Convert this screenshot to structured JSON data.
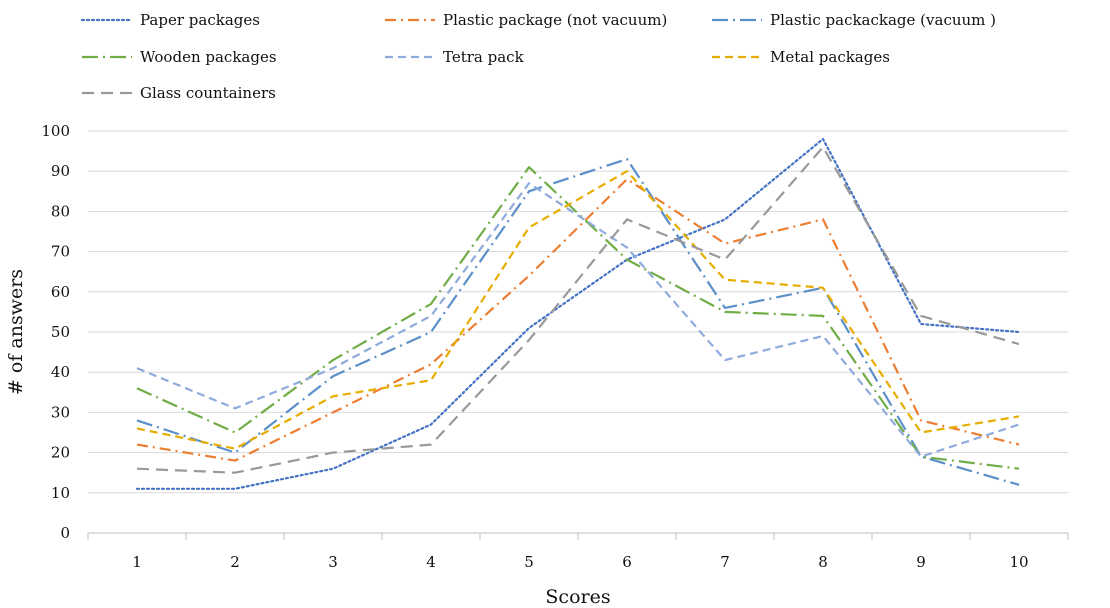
{
  "chart_data": {
    "type": "line",
    "title": "",
    "xlabel": "Scores",
    "ylabel": "# of answers",
    "x": [
      1,
      2,
      3,
      4,
      5,
      6,
      7,
      8,
      9,
      10
    ],
    "ylim": [
      0,
      100
    ],
    "yticks": [
      0,
      10,
      20,
      30,
      40,
      50,
      60,
      70,
      80,
      90,
      100
    ],
    "grid": "horizontal",
    "legend_position": "top",
    "series": [
      {
        "name": "Paper packages",
        "color": "#4472C4",
        "dash": "dotted",
        "values": [
          11,
          11,
          16,
          27,
          51,
          68,
          78,
          98,
          52,
          50
        ]
      },
      {
        "name": "Plastic package (not vacuum)",
        "color": "#ED7D31",
        "dash": "dash-dot",
        "values": [
          22,
          18,
          30,
          42,
          64,
          88,
          72,
          78,
          28,
          22
        ]
      },
      {
        "name": "Plastic packackage (vacuum )",
        "color": "#5B8FC9",
        "dash": "long-dash-dot",
        "values": [
          28,
          20,
          39,
          50,
          85,
          93,
          56,
          61,
          19,
          12
        ]
      },
      {
        "name": "Wooden packages",
        "color": "#70AD47",
        "dash": "long-dash-dot",
        "values": [
          36,
          25,
          43,
          57,
          91,
          68,
          55,
          54,
          19,
          16
        ]
      },
      {
        "name": "Tetra pack",
        "color": "#8FAADC",
        "dash": "dashed",
        "values": [
          41,
          31,
          41,
          54,
          87,
          71,
          43,
          49,
          19,
          27
        ]
      },
      {
        "name": "Metal packages",
        "color": "#E6AC00",
        "dash": "dashed",
        "values": [
          26,
          21,
          34,
          38,
          76,
          90,
          63,
          61,
          25,
          29
        ]
      },
      {
        "name": "Glass countainers",
        "color": "#999999",
        "dash": "long-dash",
        "values": [
          16,
          15,
          20,
          22,
          48,
          78,
          68,
          96,
          54,
          47
        ]
      }
    ]
  }
}
